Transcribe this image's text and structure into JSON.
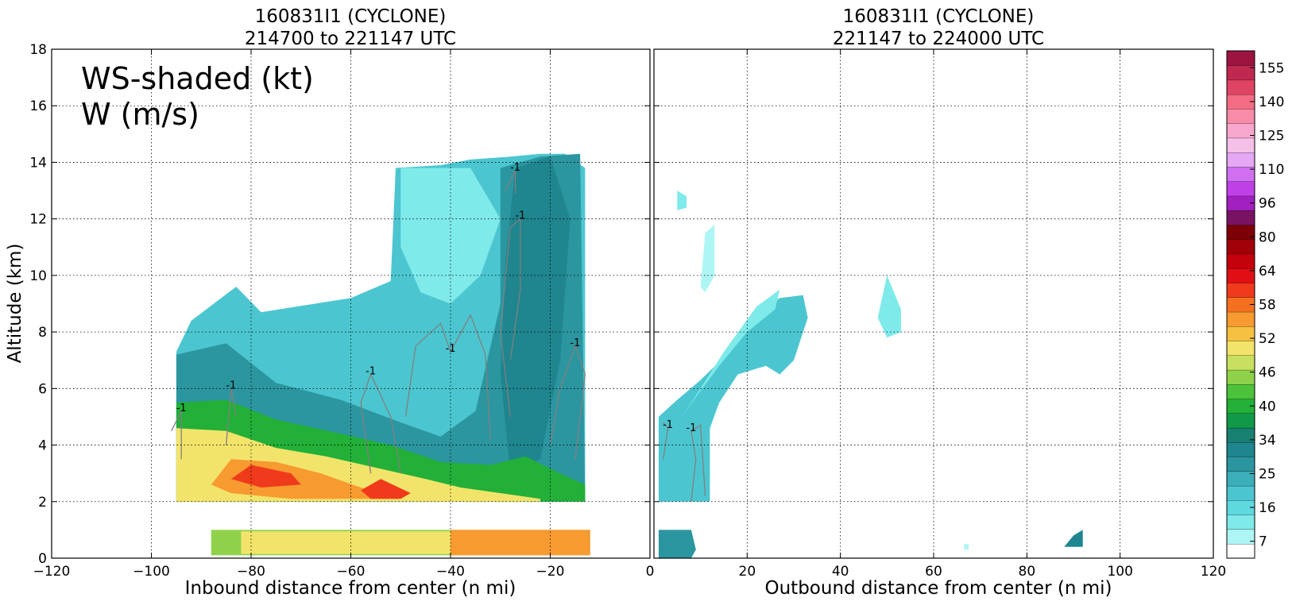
{
  "chart_data": [
    {
      "type": "heatmap",
      "title_line1": "160831I1 (CYCLONE)",
      "title_line2": "214700 to 221147 UTC",
      "annotation_line1": "WS-shaded (kt)",
      "annotation_line2": "W (m/s)",
      "xlabel": "Inbound distance from center (n mi)",
      "ylabel": "Altitude (km)",
      "xlim": [
        -120,
        0
      ],
      "ylim": [
        0,
        18
      ],
      "xticks": [
        -120,
        -100,
        -80,
        -60,
        -40,
        -20,
        0
      ],
      "yticks": [
        0,
        2,
        4,
        6,
        8,
        10,
        12,
        14,
        16,
        18
      ],
      "grid": true,
      "contour_label": "-1",
      "regions": [
        {
          "name": "upper-cloud",
          "level": 16,
          "poly": [
            [
              -95,
              2
            ],
            [
              -95,
              7.3
            ],
            [
              -92,
              8.4
            ],
            [
              -83,
              9.6
            ],
            [
              -78,
              8.7
            ],
            [
              -60,
              9.2
            ],
            [
              -52,
              9.8
            ],
            [
              -51,
              13.8
            ],
            [
              -42,
              13.9
            ],
            [
              -36,
              14.1
            ],
            [
              -28,
              14.2
            ],
            [
              -22,
              14.3
            ],
            [
              -17,
              14.3
            ],
            [
              -13,
              13.8
            ],
            [
              -13,
              2
            ]
          ]
        },
        {
          "name": "anvil-outflow",
          "level": 12,
          "poly": [
            [
              -50,
              13.8
            ],
            [
              -36,
              13.8
            ],
            [
              -30,
              12
            ],
            [
              -34,
              10
            ],
            [
              -40,
              9
            ],
            [
              -46,
              9.4
            ],
            [
              -50,
              11
            ]
          ]
        },
        {
          "name": "cloud-core",
          "level": 22,
          "poly": [
            [
              -95,
              2
            ],
            [
              -95,
              7.2
            ],
            [
              -85,
              7.6
            ],
            [
              -75,
              6.2
            ],
            [
              -62,
              5.6
            ],
            [
              -50,
              4.8
            ],
            [
              -42,
              4.3
            ],
            [
              -35,
              5.2
            ],
            [
              -30,
              9
            ],
            [
              -30,
              13.8
            ],
            [
              -22,
              14.2
            ],
            [
              -14,
              14.3
            ],
            [
              -13,
              2
            ]
          ]
        },
        {
          "name": "eyewall-tower",
          "level": 25,
          "poly": [
            [
              -28,
              3
            ],
            [
              -30,
              6.5
            ],
            [
              -29,
              10.5
            ],
            [
              -27,
              13.8
            ],
            [
              -20,
              14.2
            ],
            [
              -16,
              12
            ],
            [
              -18,
              7
            ],
            [
              -22,
              3.5
            ]
          ]
        },
        {
          "name": "low-level-green",
          "level": 34,
          "poly": [
            [
              -95,
              2
            ],
            [
              -95,
              5.5
            ],
            [
              -85,
              5.6
            ],
            [
              -75,
              4.9
            ],
            [
              -62,
              4.4
            ],
            [
              -52,
              4.0
            ],
            [
              -42,
              3.4
            ],
            [
              -32,
              3.3
            ],
            [
              -25,
              3.6
            ],
            [
              -18,
              3
            ],
            [
              -13,
              2.6
            ],
            [
              -13,
              2
            ]
          ]
        },
        {
          "name": "low-level-yellow",
          "level": 46,
          "poly": [
            [
              -95,
              2
            ],
            [
              -95,
              4.6
            ],
            [
              -85,
              4.5
            ],
            [
              -75,
              3.9
            ],
            [
              -65,
              3.6
            ],
            [
              -55,
              3.2
            ],
            [
              -45,
              2.8
            ],
            [
              -38,
              2.5
            ],
            [
              -30,
              2.3
            ],
            [
              -22,
              2.1
            ],
            [
              -22,
              2
            ]
          ]
        },
        {
          "name": "jet-orange",
          "level": 52,
          "poly": [
            [
              -88,
              2.6
            ],
            [
              -84,
              3.5
            ],
            [
              -75,
              3.4
            ],
            [
              -66,
              3.0
            ],
            [
              -58,
              2.5
            ],
            [
              -50,
              2.1
            ],
            [
              -72,
              2.1
            ],
            [
              -84,
              2.3
            ]
          ]
        },
        {
          "name": "jet-max",
          "level": 58,
          "poly": [
            [
              -84,
              2.8
            ],
            [
              -80,
              3.3
            ],
            [
              -72,
              3.0
            ],
            [
              -70,
              2.6
            ],
            [
              -78,
              2.5
            ]
          ]
        },
        {
          "name": "jet-secondary",
          "level": 58,
          "poly": [
            [
              -58,
              2.4
            ],
            [
              -54,
              2.8
            ],
            [
              -48,
              2.3
            ],
            [
              -50,
              2.1
            ],
            [
              -56,
              2.1
            ]
          ]
        },
        {
          "name": "surface-layer",
          "level": 40,
          "poly": [
            [
              -88,
              0.1
            ],
            [
              -88,
              1
            ],
            [
              -12,
              1
            ],
            [
              -12,
              0.1
            ]
          ]
        },
        {
          "name": "surface-yellow",
          "level": 46,
          "poly": [
            [
              -82,
              0.15
            ],
            [
              -82,
              0.95
            ],
            [
              -40,
              0.95
            ],
            [
              -40,
              0.15
            ]
          ]
        },
        {
          "name": "surface-red",
          "level": 52,
          "poly": [
            [
              -40,
              0.1
            ],
            [
              -40,
              1
            ],
            [
              -12,
              1
            ],
            [
              -12,
              0.1
            ]
          ]
        }
      ],
      "contours": [
        {
          "level": -1,
          "points": [
            [
              -94,
              3.5
            ],
            [
              -94,
              5.2
            ],
            [
              -96,
              4.5
            ]
          ]
        },
        {
          "level": -1,
          "points": [
            [
              -85,
              4
            ],
            [
              -84,
              6
            ],
            [
              -83,
              5
            ]
          ]
        },
        {
          "level": -1,
          "points": [
            [
              -56,
              3
            ],
            [
              -58,
              5.5
            ],
            [
              -56,
              6.5
            ],
            [
              -52,
              5
            ],
            [
              -50,
              3
            ]
          ]
        },
        {
          "level": -1,
          "points": [
            [
              -49,
              5
            ],
            [
              -47,
              7.5
            ],
            [
              -42,
              8.3
            ],
            [
              -40,
              7.3
            ],
            [
              -36,
              8.6
            ],
            [
              -33,
              7.2
            ],
            [
              -32,
              4.2
            ]
          ]
        },
        {
          "level": -1,
          "points": [
            [
              -28,
              5
            ],
            [
              -30,
              8
            ],
            [
              -28,
              11.7
            ],
            [
              -26,
              12
            ],
            [
              -26,
              9.5
            ],
            [
              -28,
              7
            ]
          ]
        },
        {
          "level": -1,
          "points": [
            [
              -20,
              4
            ],
            [
              -18,
              6
            ],
            [
              -15,
              7.5
            ],
            [
              -13,
              6.5
            ],
            [
              -15,
              3.5
            ]
          ]
        },
        {
          "level": -1,
          "points": [
            [
              -29,
              13
            ],
            [
              -27,
              13.7
            ],
            [
              -27,
              12.9
            ]
          ]
        }
      ]
    },
    {
      "type": "heatmap",
      "title_line1": "160831I1 (CYCLONE)",
      "title_line2": "221147 to 224000 UTC",
      "xlabel": "Outbound distance from center (n mi)",
      "xlim": [
        0,
        120
      ],
      "ylim": [
        0,
        18
      ],
      "xticks": [
        0,
        20,
        40,
        60,
        80,
        100,
        120
      ],
      "yticks": [
        0,
        2,
        4,
        6,
        8,
        10,
        12,
        14,
        16,
        18
      ],
      "grid": true,
      "contour_label": "-1",
      "regions": [
        {
          "name": "slanted-band",
          "level": 16,
          "poly": [
            [
              1,
              2
            ],
            [
              1,
              5
            ],
            [
              5,
              5.6
            ],
            [
              10,
              6.3
            ],
            [
              15,
              7.1
            ],
            [
              21,
              8.6
            ],
            [
              27,
              9.2
            ],
            [
              32,
              9.3
            ],
            [
              33,
              8.5
            ],
            [
              30,
              7
            ],
            [
              27,
              6.5
            ],
            [
              24,
              6.8
            ],
            [
              18,
              6.5
            ],
            [
              14,
              5.5
            ],
            [
              12,
              4.6
            ],
            [
              12,
              2
            ]
          ]
        },
        {
          "name": "slanted-band-light",
          "level": 10,
          "poly": [
            [
              6,
              5
            ],
            [
              10,
              6
            ],
            [
              15,
              7.3
            ],
            [
              22,
              8.9
            ],
            [
              27,
              9.5
            ],
            [
              26,
              8.8
            ],
            [
              20,
              8
            ],
            [
              14,
              6.8
            ],
            [
              9,
              5.7
            ]
          ]
        },
        {
          "name": "upper-patch",
          "level": 7,
          "poly": [
            [
              10,
              9.6
            ],
            [
              11,
              11.5
            ],
            [
              13,
              11.8
            ],
            [
              13,
              10
            ],
            [
              11,
              9.4
            ]
          ]
        },
        {
          "name": "small-patch",
          "level": 12,
          "poly": [
            [
              5,
              12.3
            ],
            [
              5,
              13
            ],
            [
              7,
              12.8
            ],
            [
              7,
              12.4
            ]
          ]
        },
        {
          "name": "patch-50",
          "level": 12,
          "poly": [
            [
              48,
              8.5
            ],
            [
              50,
              10
            ],
            [
              53,
              8.8
            ],
            [
              53,
              8
            ],
            [
              50,
              7.8
            ]
          ]
        },
        {
          "name": "surface-cells",
          "level": 22,
          "poly": [
            [
              1,
              0
            ],
            [
              1,
              1
            ],
            [
              8,
              1
            ],
            [
              9,
              0.3
            ],
            [
              8,
              0
            ]
          ]
        },
        {
          "name": "patch-90",
          "level": 25,
          "poly": [
            [
              88,
              0.4
            ],
            [
              90,
              0.8
            ],
            [
              92,
              1
            ],
            [
              92,
              0.4
            ]
          ]
        },
        {
          "name": "patch-67",
          "level": 7,
          "poly": [
            [
              66.5,
              0.3
            ],
            [
              66.5,
              0.5
            ],
            [
              67.5,
              0.5
            ],
            [
              67.5,
              0.3
            ]
          ]
        }
      ],
      "contours": [
        {
          "level": -1,
          "points": [
            [
              8,
              2
            ],
            [
              9,
              3.5
            ],
            [
              8,
              4.5
            ],
            [
              10,
              4.7
            ],
            [
              11,
              2.2
            ]
          ]
        },
        {
          "level": -1,
          "points": [
            [
              2,
              3.5
            ],
            [
              3,
              4.6
            ],
            [
              2,
              4.8
            ]
          ]
        }
      ]
    }
  ],
  "colorbar": {
    "levels": [
      7,
      10,
      13,
      16,
      19,
      22,
      25,
      28,
      31,
      34,
      37,
      40,
      43,
      46,
      49,
      52,
      55,
      58,
      61,
      64,
      72,
      80,
      88,
      96,
      103,
      110,
      118,
      125,
      133,
      140,
      148,
      155,
      163
    ],
    "colors": [
      "#ffffff",
      "#aef5f5",
      "#7feaea",
      "#5ed9e0",
      "#4bc6d0",
      "#3aaeb9",
      "#2b96a0",
      "#1f858e",
      "#188070",
      "#109a48",
      "#22b038",
      "#4cc23a",
      "#8fd24a",
      "#c8e060",
      "#f2e46a",
      "#f6c040",
      "#f79a30",
      "#f47020",
      "#f03a1c",
      "#e00f14",
      "#c4000c",
      "#a00008",
      "#7c0006",
      "#7a1264",
      "#a21fc0",
      "#c040e8",
      "#d070f0",
      "#e4a8f4",
      "#f4c0e8",
      "#f8a8cc",
      "#f88ca8",
      "#f46c84",
      "#e04464",
      "#c02850",
      "#9c1440"
    ],
    "tick_labels": [
      "7",
      "16",
      "25",
      "34",
      "40",
      "46",
      "52",
      "58",
      "64",
      "80",
      "96",
      "110",
      "125",
      "140",
      "155"
    ]
  }
}
